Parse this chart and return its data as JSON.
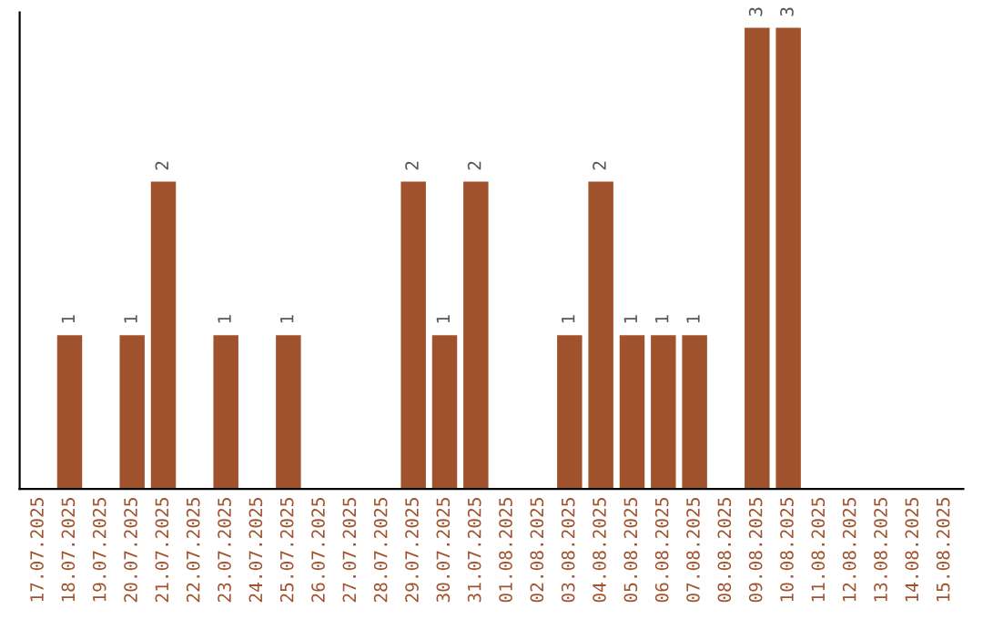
{
  "chart_data": {
    "type": "bar",
    "categories": [
      "17.07.2025",
      "18.07.2025",
      "19.07.2025",
      "20.07.2025",
      "21.07.2025",
      "22.07.2025",
      "23.07.2025",
      "24.07.2025",
      "25.07.2025",
      "26.07.2025",
      "27.07.2025",
      "28.07.2025",
      "29.07.2025",
      "30.07.2025",
      "31.07.2025",
      "01.08.2025",
      "02.08.2025",
      "03.08.2025",
      "04.08.2025",
      "05.08.2025",
      "06.08.2025",
      "07.08.2025",
      "08.08.2025",
      "09.08.2025",
      "10.08.2025",
      "11.08.2025",
      "12.08.2025",
      "13.08.2025",
      "14.08.2025",
      "15.08.2025"
    ],
    "values": [
      0,
      1,
      0,
      1,
      2,
      0,
      1,
      0,
      1,
      0,
      0,
      0,
      2,
      1,
      2,
      0,
      0,
      1,
      2,
      1,
      1,
      1,
      0,
      3,
      3,
      0,
      0,
      0,
      0,
      0
    ],
    "color": "#a0522d",
    "ylim": [
      0,
      3.1
    ],
    "value_labels": [
      null,
      "1",
      null,
      "1",
      "2",
      null,
      "1",
      null,
      "1",
      null,
      null,
      null,
      "2",
      "1",
      "2",
      null,
      null,
      "1",
      "2",
      "1",
      "1",
      "1",
      null,
      "3",
      "3",
      null,
      null,
      null,
      null,
      null
    ],
    "tick_labels": "x",
    "grid": false,
    "legend": false
  }
}
